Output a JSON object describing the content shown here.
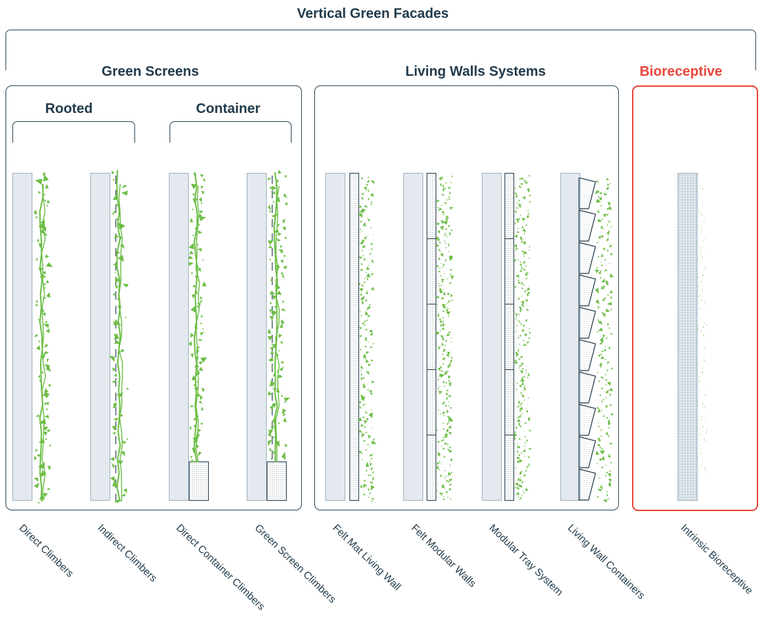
{
  "title": "Vertical Green Facades",
  "groups": {
    "green_screens": "Green Screens",
    "living_walls": "Living Walls Systems",
    "bioreceptive": "Bioreceptive"
  },
  "subgroups": {
    "rooted": "Rooted",
    "container": "Container"
  },
  "systems": [
    "Direct Climbers",
    "Indirect Climbers",
    "Direct Container Climbers",
    "Green Screen Climbers",
    "Felt Mat Living Wall",
    "Felt Modular Walls",
    "Modular Tray System",
    "Living Wall Containers",
    "Intrinsic Bioreceptive"
  ],
  "colors": {
    "text": "#213a4c",
    "accent": "#e8473b",
    "foliage": "#6cbd45",
    "wall": "#e3e9ee"
  }
}
